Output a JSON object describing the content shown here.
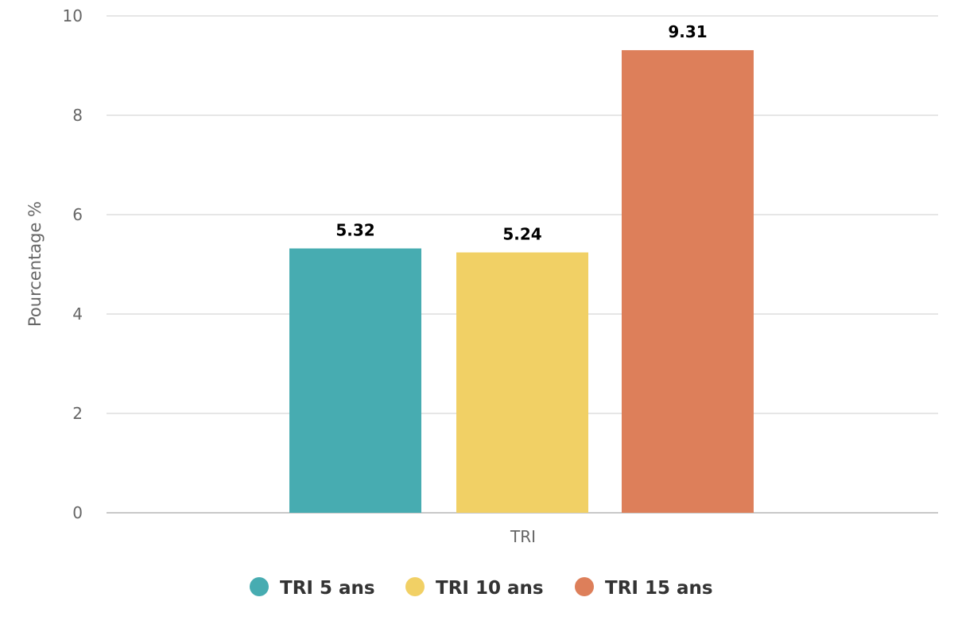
{
  "chart_data": {
    "type": "bar",
    "categories": [
      "TRI"
    ],
    "series": [
      {
        "name": "TRI 5 ans",
        "values": [
          5.32
        ],
        "color": "#47acb1"
      },
      {
        "name": "TRI 10 ans",
        "values": [
          5.24
        ],
        "color": "#f1d065"
      },
      {
        "name": "TRI 15 ans",
        "values": [
          9.31
        ],
        "color": "#dd7f5a"
      }
    ],
    "data_labels": [
      "5.32",
      "5.24",
      "9.31"
    ],
    "xlabel": "",
    "ylabel": "Pourcentage %",
    "ylim": [
      0,
      10
    ],
    "yticks": [
      0,
      2,
      4,
      6,
      8,
      10
    ],
    "grid": true,
    "legend_position": "bottom"
  }
}
